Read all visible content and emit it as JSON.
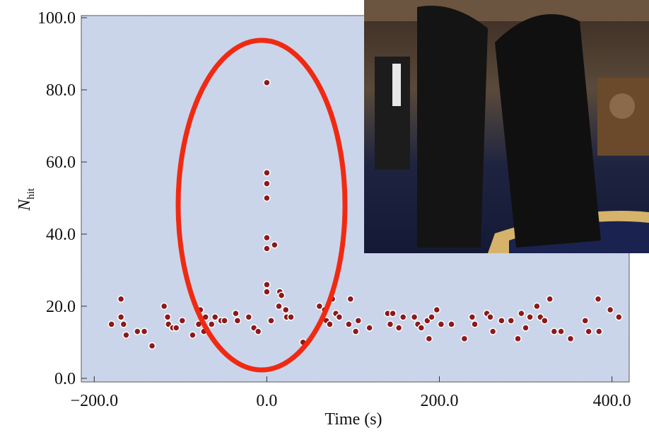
{
  "chart_data": {
    "type": "scatter",
    "xlabel": "Time (s)",
    "ylabel": "N",
    "ylabel_subscript": "hit",
    "xlim": [
      -215,
      420
    ],
    "ylim": [
      -1,
      100.6
    ],
    "xticks": [
      {
        "value": -200,
        "label": "−200.0"
      },
      {
        "value": 0,
        "label": "0.0"
      },
      {
        "value": 200,
        "label": "200.0"
      },
      {
        "value": 400,
        "label": "400.0"
      }
    ],
    "yticks": [
      {
        "value": 0,
        "label": "0.0"
      },
      {
        "value": 20,
        "label": "20.0"
      },
      {
        "value": 40,
        "label": "40.0"
      },
      {
        "value": 60,
        "label": "60.0"
      },
      {
        "value": 80,
        "label": "80.0"
      },
      {
        "value": 100,
        "label": "100.0"
      }
    ],
    "series": [
      {
        "color": "#8b1a1a",
        "x": [
          0,
          0,
          0,
          0,
          0,
          9,
          0,
          0,
          0,
          15,
          17,
          5,
          14,
          23,
          28,
          22,
          42,
          -180,
          -169,
          -169,
          -163,
          -166,
          -150,
          -142,
          -133,
          -119,
          -115,
          -114,
          -109,
          -105,
          -98,
          -86,
          -79,
          -77,
          -73,
          -71,
          -64,
          -60,
          -53,
          -49,
          -36,
          -34,
          -21,
          -15,
          -10,
          61,
          67,
          69,
          73,
          76,
          80,
          84,
          97,
          95,
          106,
          103,
          119,
          140,
          146,
          143,
          153,
          158,
          171,
          175,
          179,
          186,
          188,
          191,
          197,
          202,
          214,
          229,
          238,
          241,
          255,
          259,
          262,
          272,
          283,
          291,
          295,
          300,
          305,
          313,
          317,
          322,
          328,
          333,
          341,
          352,
          369,
          373,
          384,
          385,
          398,
          408
        ],
        "values": [
          82,
          57,
          54,
          50,
          39,
          37,
          36,
          26,
          24,
          24,
          23,
          16,
          20,
          17,
          17,
          19,
          10,
          15,
          22,
          17,
          12,
          15,
          13,
          13,
          9,
          20,
          17,
          15,
          14,
          14,
          16,
          12,
          15,
          19,
          13,
          17,
          15,
          17,
          16,
          16,
          18,
          16,
          17,
          14,
          13,
          20,
          19,
          16,
          15,
          22,
          18,
          17,
          22,
          15,
          16,
          13,
          14,
          18,
          18,
          15,
          14,
          17,
          17,
          15,
          14,
          16,
          11,
          17,
          19,
          15,
          15,
          11,
          17,
          15,
          18,
          17,
          13,
          16,
          16,
          11,
          18,
          14,
          17,
          20,
          17,
          16,
          22,
          13,
          13,
          11,
          16,
          13,
          22,
          13,
          19,
          17
        ]
      }
    ]
  }
}
